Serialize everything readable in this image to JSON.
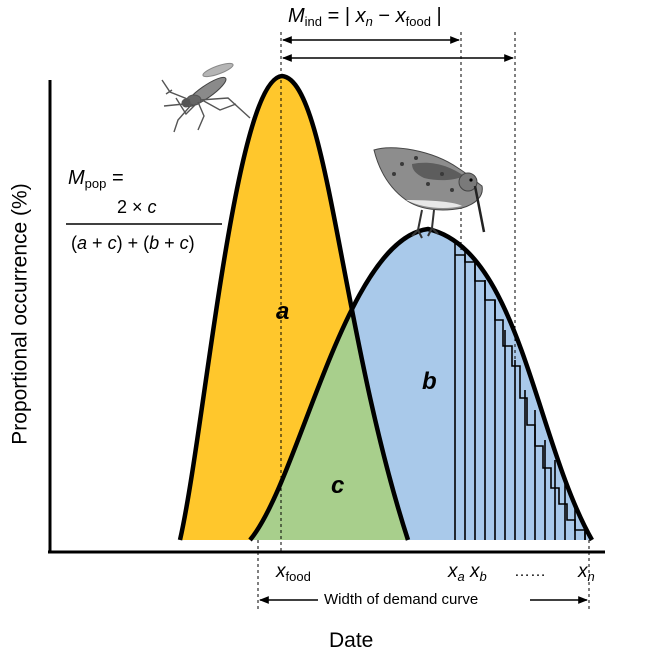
{
  "colors": {
    "resource_curve": "#FFC72C",
    "demand_curve": "#A9C9EA",
    "overlap": "#A8CF8C",
    "outline": "#000000"
  },
  "icons": {
    "mosquito": "mosquito-icon",
    "bird": "shorebird-icon"
  },
  "mind_formula": {
    "lhs_symbol": "M",
    "lhs_subscript": "ind",
    "equals_bar": "= |",
    "term1_symbol": "x",
    "term1_subscript": "n",
    "minus": "−",
    "term2_symbol": "x",
    "term2_subscript": "food",
    "close_bar": "|"
  },
  "mpop_formula": {
    "lhs_symbol": "M",
    "lhs_subscript": "pop",
    "equals": "=",
    "numerator_prefix": "2 ×",
    "numerator_var": "c",
    "denominator": {
      "open1": "(",
      "a": "a",
      "plus1": "+",
      "c1": "c",
      "close1": ")",
      "plus_mid": "+",
      "open2": "(",
      "b": "b",
      "plus2": "+",
      "c2": "c",
      "close2": ")"
    }
  },
  "region_labels": {
    "a": "a",
    "b": "b",
    "c": "c"
  },
  "x_markers": {
    "food_symbol": "x",
    "food_subscript": "food",
    "a_symbol": "x",
    "a_subscript": "a",
    "b_symbol": "x",
    "b_subscript": "b",
    "ellipsis": "……",
    "n_symbol": "x",
    "n_subscript": "n"
  },
  "width_label": "Width of demand curve",
  "axes": {
    "xlabel": "Date",
    "ylabel": "Proportional occurrence (%)"
  }
}
